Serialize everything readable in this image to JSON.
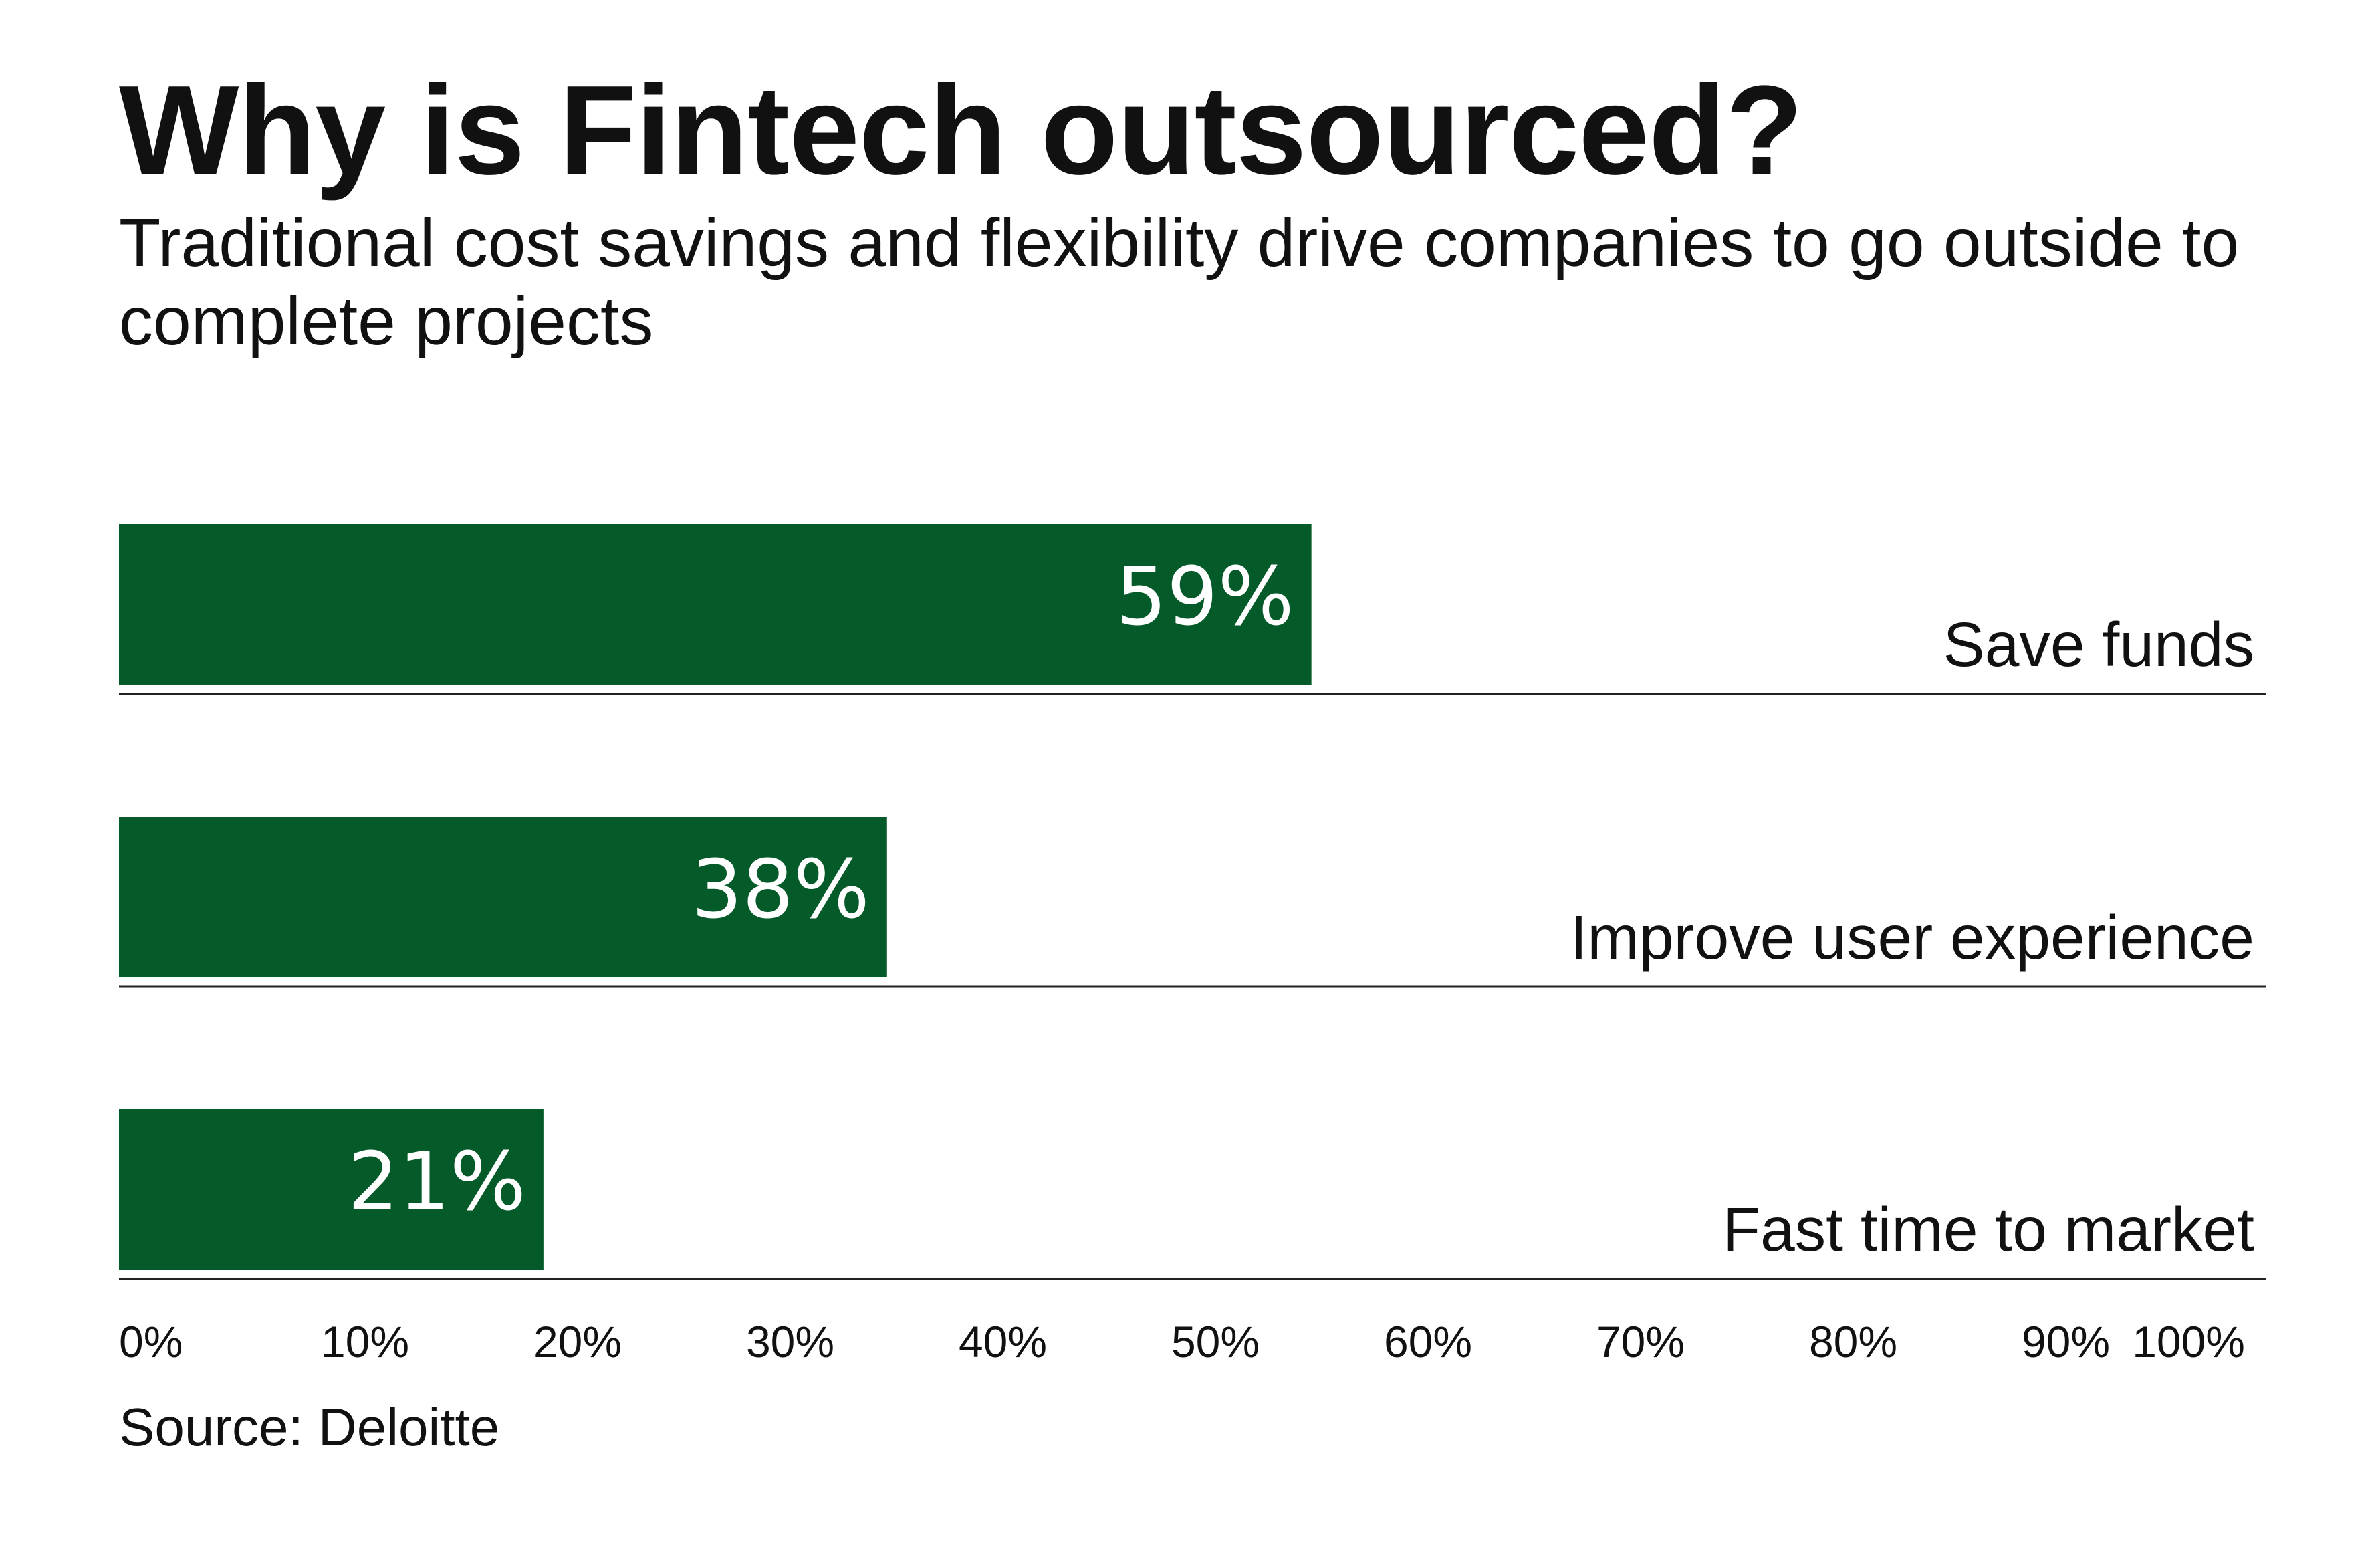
{
  "title": "Why is Fintech outsourced?",
  "subtitle": "Traditional cost savings and flexibility drive companies to go outside to complete projects",
  "source": "Source: Deloitte",
  "colors": {
    "bar": "#045a28",
    "bar_label": "#ffffff",
    "rule": "#222222",
    "text": "#111111"
  },
  "chart_data": {
    "type": "bar",
    "orientation": "horizontal",
    "categories": [
      "Save funds",
      "Improve user experience",
      "Fast time to market"
    ],
    "values": [
      59,
      38,
      21
    ],
    "value_labels": [
      "59%",
      "38%",
      "21%"
    ],
    "xlim": [
      0,
      100
    ],
    "xticks": [
      "0%",
      "10%",
      "20%",
      "30%",
      "40%",
      "50%",
      "60%",
      "70%",
      "80%",
      "90%",
      "100%"
    ],
    "grid": false,
    "legend": "none"
  }
}
